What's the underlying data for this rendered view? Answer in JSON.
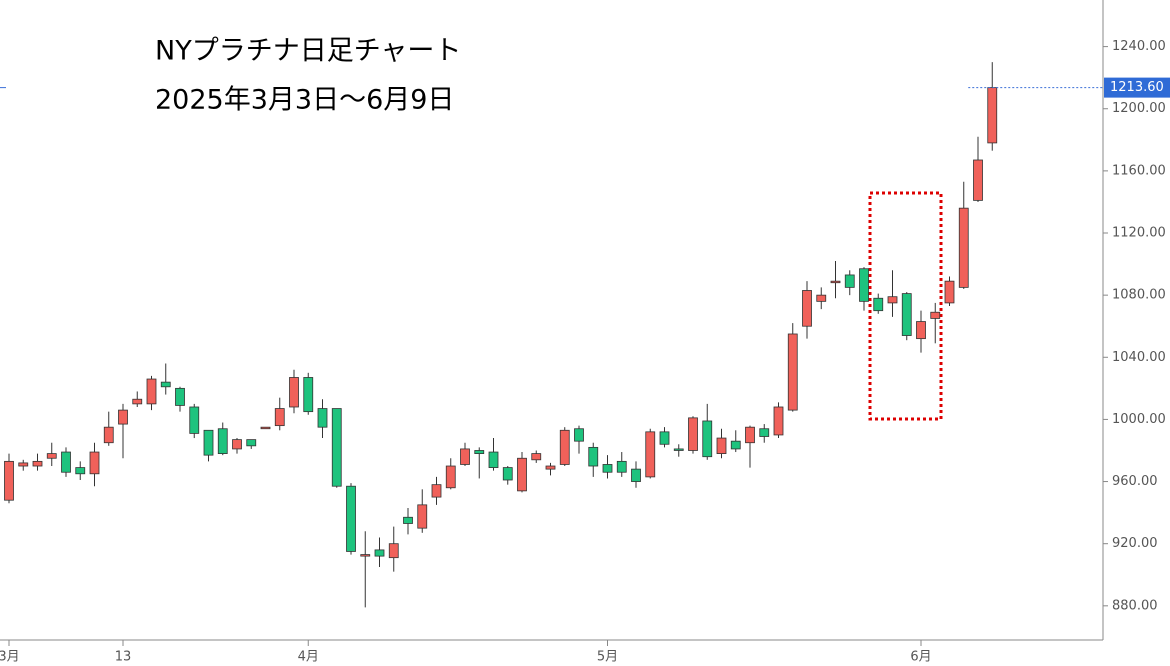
{
  "chart_data": {
    "type": "candlestick",
    "title": "NYプラチナ日足チャート",
    "subtitle": "2025年3月3日～6月9日",
    "up_color": "#f0615a",
    "down_color": "#1ec37e",
    "ylim": [
      858,
      1270
    ],
    "yticks": [
      {
        "value": 880,
        "label": "880.00"
      },
      {
        "value": 920,
        "label": "920.00"
      },
      {
        "value": 960,
        "label": "960.00"
      },
      {
        "value": 1000,
        "label": "1000.00"
      },
      {
        "value": 1040,
        "label": "1040.00"
      },
      {
        "value": 1080,
        "label": "1080.00"
      },
      {
        "value": 1120,
        "label": "1120.00"
      },
      {
        "value": 1160,
        "label": "1160.00"
      },
      {
        "value": 1200,
        "label": "1200.00"
      },
      {
        "value": 1240,
        "label": "1240.00"
      }
    ],
    "last_price": {
      "value": 1213.6,
      "label": "1213.60"
    },
    "categories": [
      "3月",
      null,
      null,
      null,
      null,
      null,
      null,
      null,
      "13",
      null,
      null,
      null,
      null,
      null,
      null,
      null,
      null,
      null,
      null,
      null,
      null,
      "4月",
      null,
      null,
      null,
      null,
      null,
      null,
      null,
      null,
      null,
      null,
      null,
      null,
      null,
      null,
      null,
      null,
      null,
      null,
      null,
      null,
      "5月",
      null,
      null,
      null,
      null,
      null,
      null,
      null,
      null,
      null,
      null,
      null,
      null,
      null,
      null,
      null,
      null,
      null,
      null,
      null,
      null,
      null,
      "6月",
      null,
      null,
      null,
      null,
      null
    ],
    "series": [
      {
        "open": [
          948,
          970,
          970,
          975,
          979,
          969,
          965,
          985,
          997,
          1010,
          1010,
          1024,
          1020,
          1008,
          993,
          994,
          981,
          987,
          994,
          996,
          1008,
          1027,
          1007,
          1007,
          957,
          912,
          916,
          911,
          937,
          930,
          950,
          956,
          971,
          980,
          979,
          969,
          954,
          974,
          968,
          971,
          994,
          982,
          971,
          973,
          968,
          963,
          992,
          981,
          980,
          999,
          978,
          986,
          985,
          994,
          990,
          1006,
          1060,
          1076,
          1088,
          1093,
          1097,
          1078,
          1075,
          1081,
          1052,
          1065,
          1075,
          1085,
          1141,
          1178
        ],
        "high": [
          978,
          974,
          978,
          985,
          982,
          973,
          985,
          1005,
          1010,
          1018,
          1028,
          1036,
          1021,
          1010,
          993,
          998,
          988,
          987,
          995,
          1014,
          1032,
          1030,
          1013,
          1007,
          959,
          928,
          924,
          931,
          943,
          955,
          963,
          975,
          985,
          982,
          988,
          970,
          979,
          980,
          972,
          995,
          996,
          985,
          977,
          979,
          973,
          994,
          995,
          984,
          1002,
          1010,
          994,
          993,
          996,
          997,
          1011,
          1062,
          1089,
          1085,
          1102,
          1096,
          1098,
          1081,
          1096,
          1082,
          1070,
          1075,
          1092,
          1153,
          1182,
          1230
        ],
        "low": [
          946,
          967,
          967,
          970,
          963,
          961,
          957,
          983,
          975,
          1008,
          1006,
          1016,
          1005,
          988,
          973,
          977,
          978,
          981,
          994,
          993,
          1004,
          1003,
          988,
          956,
          913,
          879,
          905,
          902,
          926,
          927,
          945,
          955,
          970,
          962,
          967,
          958,
          953,
          972,
          964,
          970,
          978,
          963,
          962,
          963,
          956,
          962,
          982,
          976,
          978,
          974,
          975,
          979,
          969,
          985,
          988,
          1005,
          1052,
          1071,
          1078,
          1080,
          1070,
          1068,
          1066,
          1051,
          1043,
          1049,
          1073,
          1084,
          1140,
          1173
        ],
        "close": [
          973,
          972,
          973,
          978,
          966,
          965,
          979,
          995,
          1006,
          1013,
          1026,
          1021,
          1009,
          991,
          977,
          978,
          987,
          983,
          995,
          1007,
          1027,
          1005,
          995,
          957,
          915,
          913,
          912,
          920,
          933,
          945,
          958,
          970,
          981,
          978,
          969,
          961,
          975,
          978,
          970,
          993,
          986,
          970,
          966,
          966,
          960,
          992,
          984,
          980,
          1001,
          976,
          988,
          981,
          995,
          989,
          1008,
          1055,
          1083,
          1080,
          1089,
          1085,
          1076,
          1070,
          1079,
          1054,
          1063,
          1069,
          1089,
          1136,
          1167,
          1213.6
        ]
      }
    ]
  }
}
